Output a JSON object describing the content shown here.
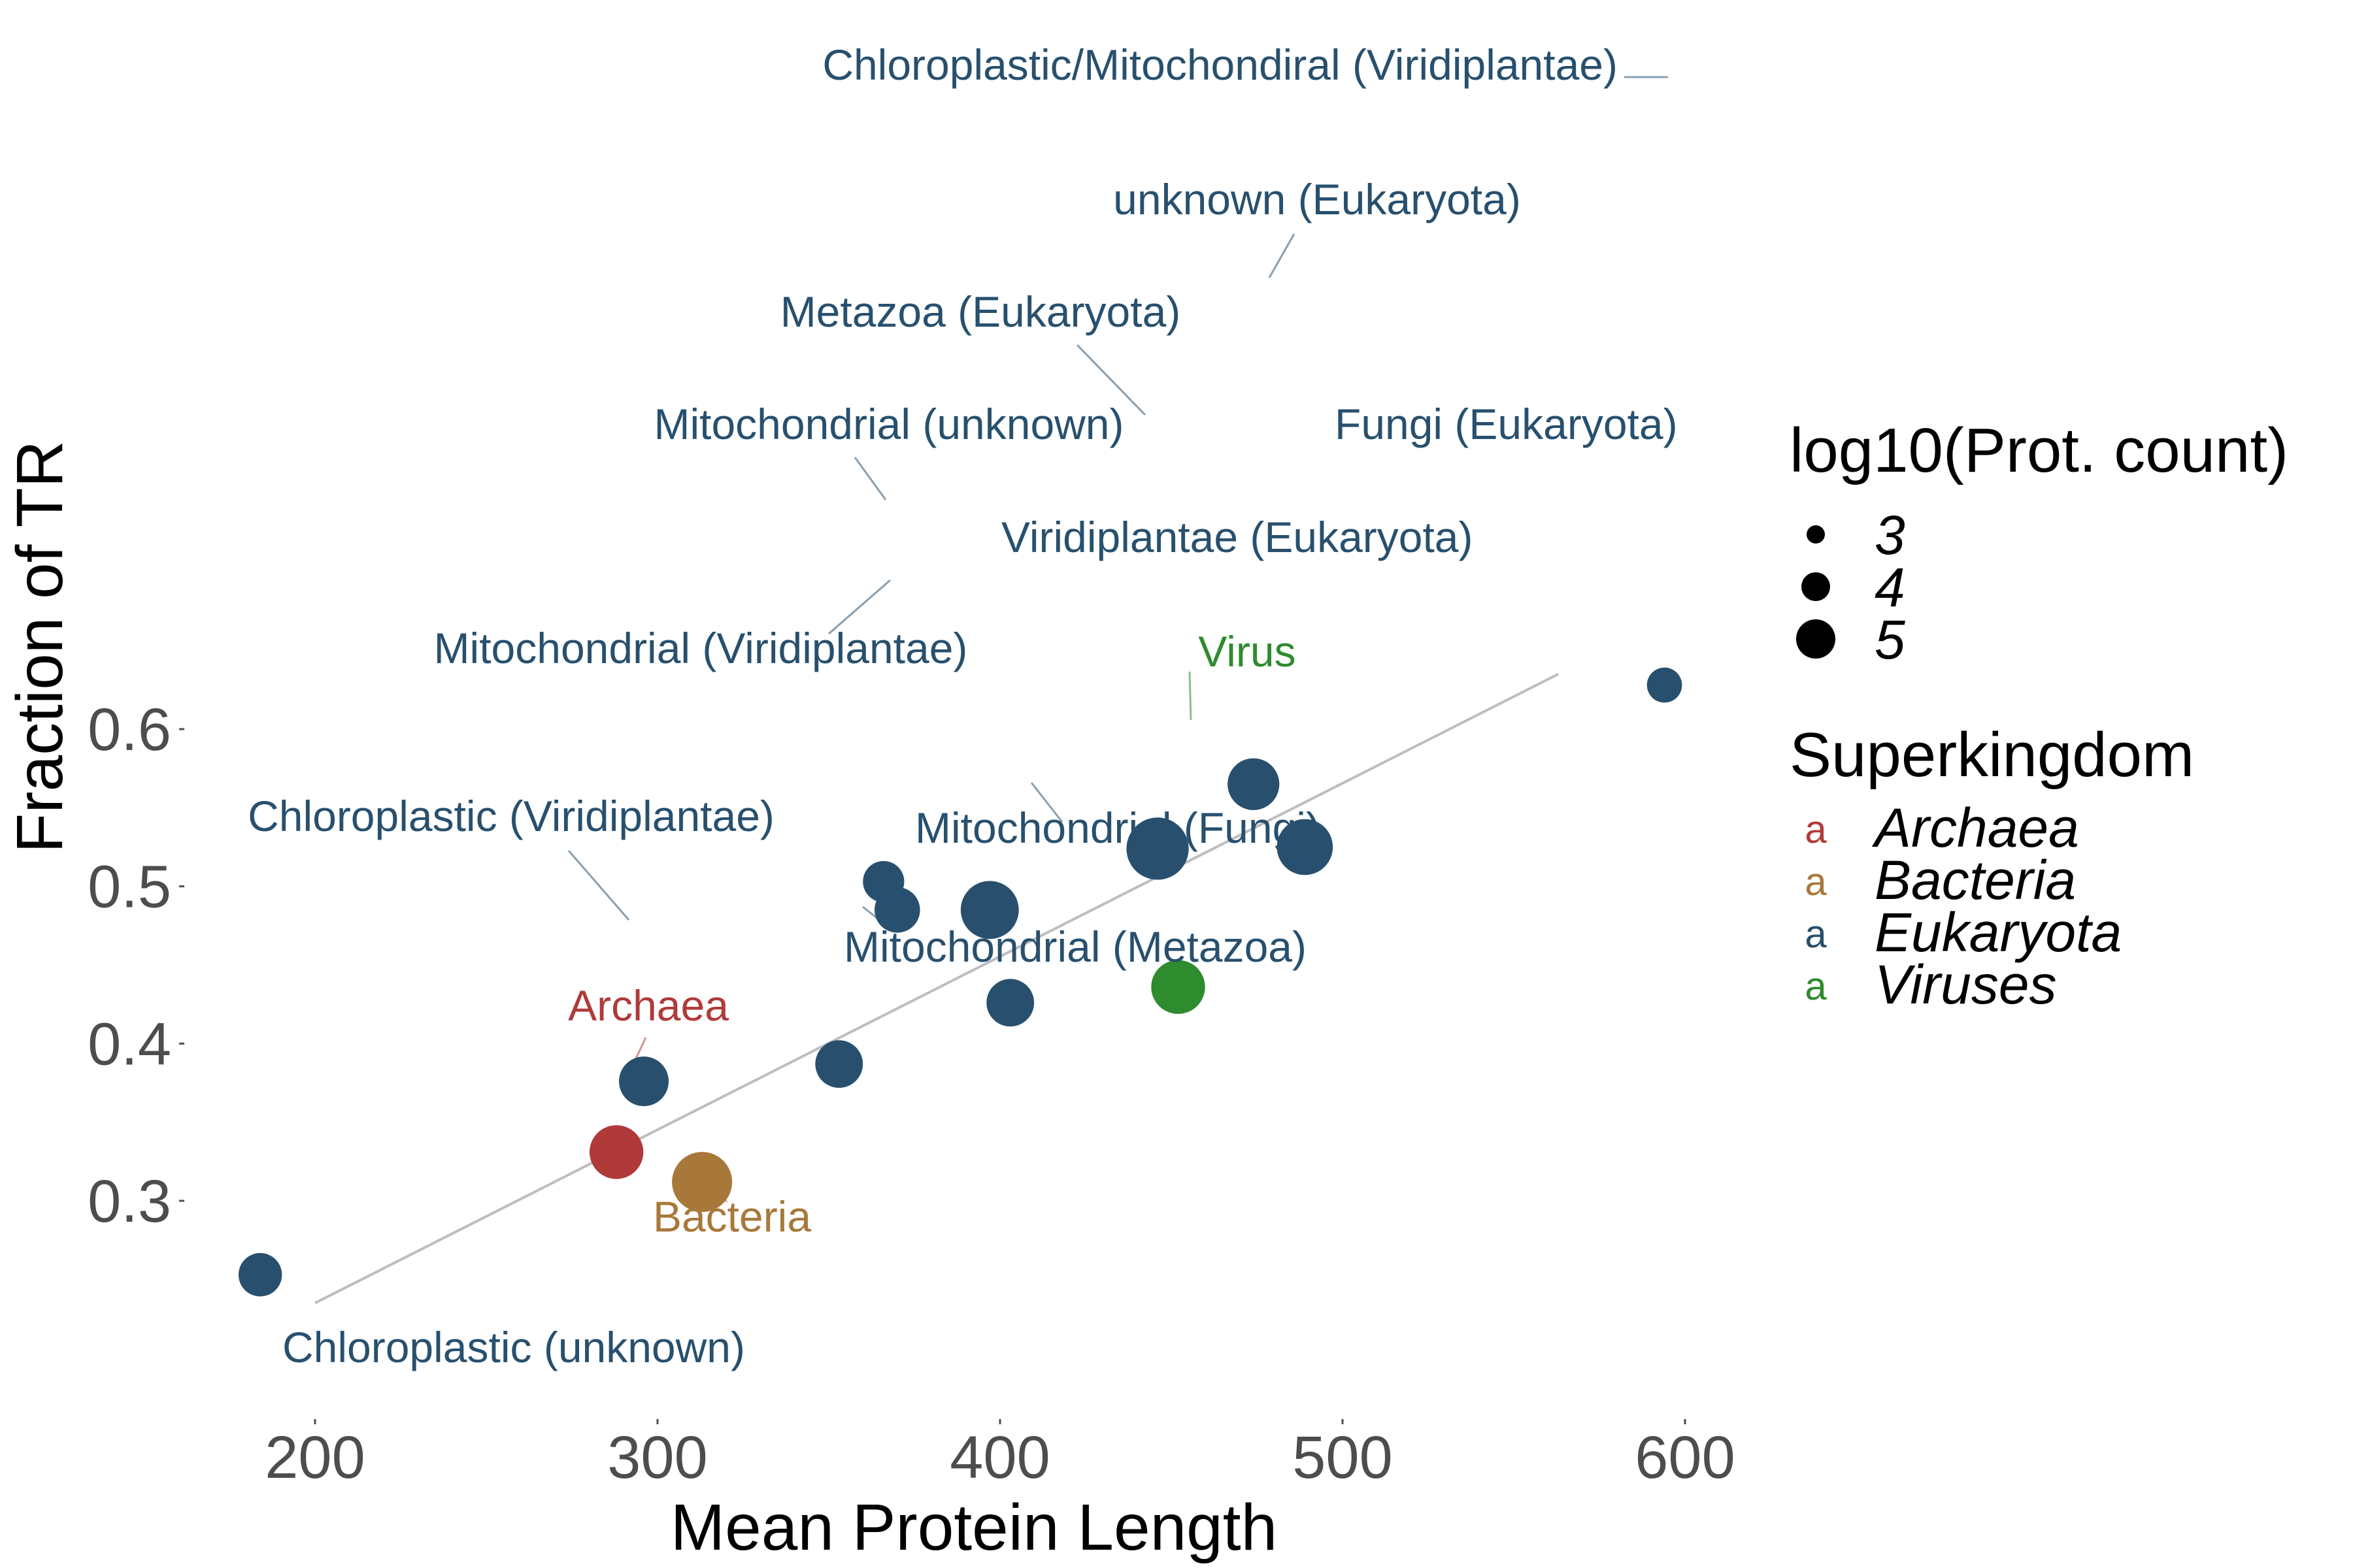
{
  "chart_data": {
    "type": "scatter",
    "title": "",
    "xlabel": "Mean Protein Length",
    "ylabel": "Fraction of TR",
    "xlim": [
      180,
      620
    ],
    "ylim": [
      0.24,
      0.63
    ],
    "x_ticks": [
      200,
      300,
      400,
      500,
      600
    ],
    "y_ticks": [
      0.3,
      0.4,
      0.5,
      0.6
    ],
    "x_tick_labels": [
      "200",
      "300",
      "400",
      "500",
      "600"
    ],
    "y_tick_labels": [
      "0.3",
      "0.4",
      "0.5",
      "0.6"
    ],
    "grid": false,
    "trend_line": {
      "color": "#bdbdbd",
      "points": [
        [
          200,
          0.235
        ],
        [
          563,
          0.635
        ]
      ]
    },
    "colors": {
      "Archaea": "#b03a3a",
      "Bacteria": "#a8783a",
      "Eukaryota": "#28506e",
      "Viruses": "#2e8b2e"
    },
    "points": [
      {
        "label": "Chloroplastic/Mitochondiral (Viridiplantae)",
        "x": 594,
        "y": 0.628,
        "size": 2.6,
        "group": "Eukaryota"
      },
      {
        "label": "unknown (Eukaryota)",
        "x": 474,
        "y": 0.565,
        "size": 4.2,
        "group": "Eukaryota"
      },
      {
        "label": "Metazoa (Eukaryota)",
        "x": 446,
        "y": 0.524,
        "size": 5.2,
        "group": "Eukaryota"
      },
      {
        "label": "Fungi (Eukaryota)",
        "x": 489,
        "y": 0.525,
        "size": 4.6,
        "group": "Eukaryota"
      },
      {
        "label": "Mitochondrial (unknown)",
        "x": 366,
        "y": 0.503,
        "size": 3.2,
        "group": "Eukaryota"
      },
      {
        "label": "Viridiplantae (Eukaryota)",
        "x": 397,
        "y": 0.485,
        "size": 4.8,
        "group": "Eukaryota"
      },
      {
        "label": "Mitochondrial (Viridiplantae)",
        "x": 370,
        "y": 0.485,
        "size": 3.6,
        "group": "Eukaryota"
      },
      {
        "label": "Virus",
        "x": 452,
        "y": 0.436,
        "size": 4.4,
        "group": "Viruses"
      },
      {
        "label": "Mitochondrial (Fungi)",
        "x": 403,
        "y": 0.426,
        "size": 3.8,
        "group": "Eukaryota"
      },
      {
        "label": "Chloroplastic (Viridiplantae)",
        "x": 296,
        "y": 0.376,
        "size": 4.0,
        "group": "Eukaryota"
      },
      {
        "label": "Mitochondrial (Metazoa)",
        "x": 353,
        "y": 0.387,
        "size": 3.8,
        "group": "Eukaryota"
      },
      {
        "label": "Archaea",
        "x": 288,
        "y": 0.331,
        "size": 4.4,
        "group": "Archaea"
      },
      {
        "label": "Bacteria",
        "x": 313,
        "y": 0.312,
        "size": 5.0,
        "group": "Bacteria"
      },
      {
        "label": "Chloroplastic (unknown)",
        "x": 184,
        "y": 0.253,
        "size": 3.4,
        "group": "Eukaryota"
      }
    ],
    "legend": {
      "placement": "right",
      "size_title": "log10(Prot. count)",
      "size_items": [
        {
          "label": "3",
          "value": 3
        },
        {
          "label": "4",
          "value": 4
        },
        {
          "label": "5",
          "value": 5
        }
      ],
      "color_title": "Superkingdom",
      "color_items": [
        {
          "label": "Archaea",
          "key": "a"
        },
        {
          "label": "Bacteria",
          "key": "a"
        },
        {
          "label": "Eukaryota",
          "key": "a"
        },
        {
          "label": "Viruses",
          "key": "a"
        }
      ]
    }
  }
}
